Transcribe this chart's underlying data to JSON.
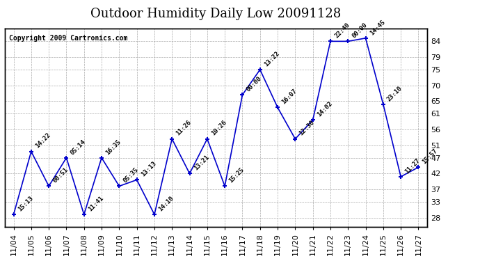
{
  "title": "Outdoor Humidity Daily Low 20091128",
  "copyright": "Copyright 2009 Cartronics.com",
  "line_color": "#0000CC",
  "marker_color": "#0000CC",
  "bg_color": "#ffffff",
  "grid_color": "#aaaaaa",
  "dates": [
    "11/04",
    "11/05",
    "11/06",
    "11/07",
    "11/08",
    "11/09",
    "11/10",
    "11/11",
    "11/12",
    "11/13",
    "11/14",
    "11/15",
    "11/16",
    "11/17",
    "11/18",
    "11/19",
    "11/20",
    "11/21",
    "11/22",
    "11/23",
    "11/24",
    "11/25",
    "11/26",
    "11/27"
  ],
  "values": [
    29,
    49,
    38,
    47,
    29,
    47,
    38,
    40,
    29,
    53,
    42,
    53,
    38,
    67,
    75,
    63,
    53,
    59,
    84,
    84,
    85,
    64,
    41,
    44
  ],
  "labels": [
    "15:13",
    "14:22",
    "08:51",
    "05:14",
    "11:41",
    "16:35",
    "05:35",
    "13:13",
    "14:10",
    "11:26",
    "13:21",
    "10:26",
    "15:25",
    "00:00",
    "13:22",
    "16:07",
    "12:30",
    "14:02",
    "22:40",
    "00:00",
    "14:45",
    "23:10",
    "11:27",
    "15:57"
  ],
  "yticks": [
    28,
    33,
    37,
    42,
    47,
    51,
    56,
    61,
    65,
    70,
    75,
    79,
    84
  ],
  "ylim": [
    25,
    88
  ],
  "title_fontsize": 13,
  "label_fontsize": 6.5,
  "tick_fontsize": 8,
  "copyright_fontsize": 7
}
